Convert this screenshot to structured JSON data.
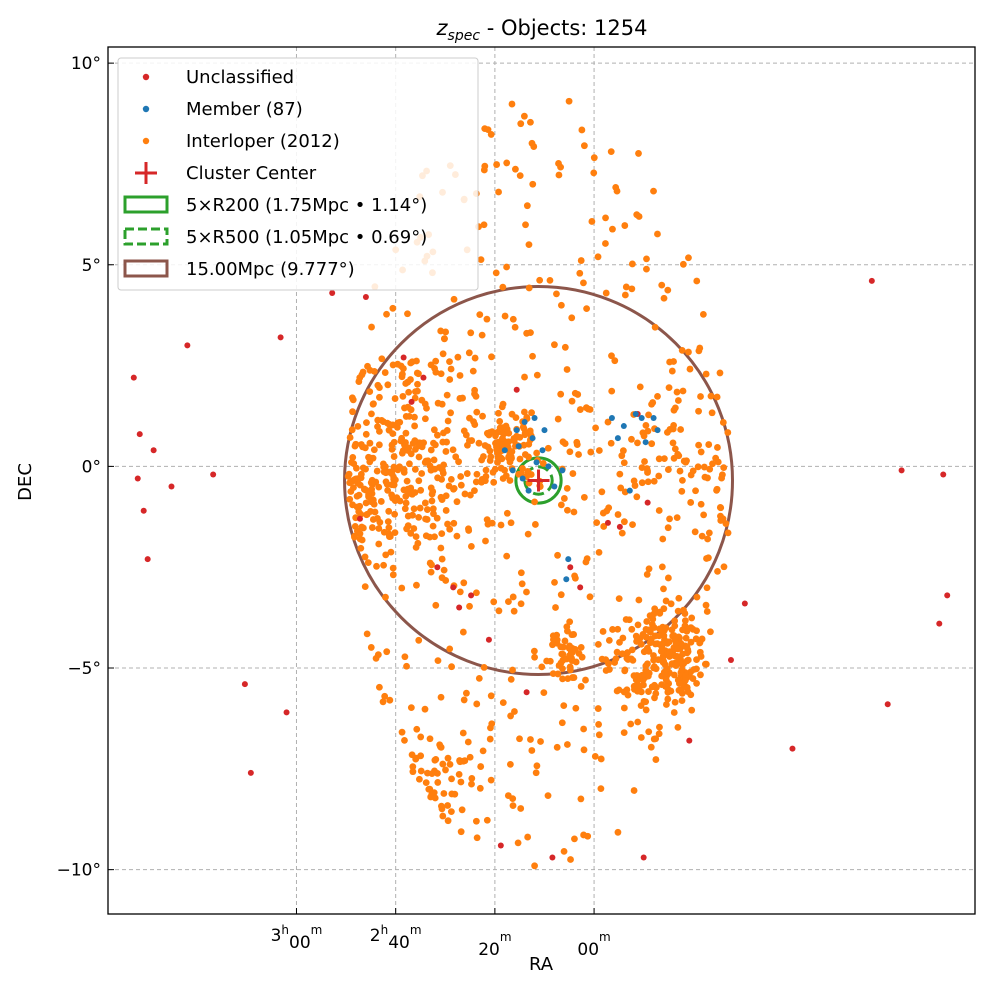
{
  "chart_data": {
    "type": "scatter",
    "title_main": "z",
    "title_sub": "spec",
    "title_rest": " - Objects: 1254",
    "xlabel": "RA",
    "ylabel": "DEC",
    "xlim": [
      54.5,
      10.8
    ],
    "ylim": [
      -11.1,
      10.4
    ],
    "grid": true,
    "legend_position": "top-left",
    "x_ticks": [
      {
        "value": 45,
        "label": "3",
        "unit_h": "h",
        "rest": "00",
        "unit_m": "m"
      },
      {
        "value": 40,
        "label": "2",
        "unit_h": "h",
        "rest": "40",
        "unit_m": "m"
      },
      {
        "value": 35,
        "label": "",
        "unit_h": "",
        "rest": "20",
        "unit_m": "m"
      },
      {
        "value": 30,
        "label": "",
        "unit_h": "",
        "rest": "00",
        "unit_m": "m"
      }
    ],
    "y_ticks": [
      {
        "value": 10,
        "label": "10°"
      },
      {
        "value": 5,
        "label": "5°"
      },
      {
        "value": 0,
        "label": "0°"
      },
      {
        "value": -5,
        "label": "−5°"
      },
      {
        "value": -10,
        "label": "−10°"
      }
    ],
    "cluster_center": {
      "ra": 32.8,
      "dec": -0.35
    },
    "circles": [
      {
        "name": "r200",
        "ra": 32.8,
        "dec": -0.35,
        "radius_deg": 1.14,
        "color": "#2ca02c",
        "dashed": false
      },
      {
        "name": "r500",
        "ra": 32.8,
        "dec": -0.35,
        "radius_deg": 0.69,
        "color": "#2ca02c",
        "dashed": true
      },
      {
        "name": "r15",
        "ra": 32.8,
        "dec": -0.35,
        "radius_deg": 9.777,
        "color": "#8c564b",
        "dashed": false
      }
    ],
    "legend": [
      {
        "label": "Unclassified",
        "kind": "dot",
        "color": "#d62728"
      },
      {
        "label": "Member (87)",
        "kind": "dot",
        "color": "#1f77b4"
      },
      {
        "label": "Interloper (2012)",
        "kind": "dot",
        "color": "#ff7f0e"
      },
      {
        "label": "Cluster Center",
        "kind": "plus",
        "color": "#d62728"
      },
      {
        "label": "5×R200 (1.75Mpc • 1.14°)",
        "kind": "rect",
        "color": "#2ca02c"
      },
      {
        "label": "5×R500 (1.05Mpc • 0.69°)",
        "kind": "rect-dashed",
        "color": "#2ca02c"
      },
      {
        "label": "15.00Mpc (9.777°)",
        "kind": "rect",
        "color": "#8c564b"
      }
    ],
    "unclassified": [
      [
        53.2,
        2.2
      ],
      [
        52.9,
        0.8
      ],
      [
        52.7,
        -1.1
      ],
      [
        53.0,
        -0.3
      ],
      [
        52.5,
        -2.3
      ],
      [
        50.5,
        3.0
      ],
      [
        49.2,
        -0.2
      ],
      [
        47.6,
        -5.4
      ],
      [
        47.3,
        -7.6
      ],
      [
        45.8,
        3.2
      ],
      [
        43.2,
        4.3
      ],
      [
        41.5,
        4.2
      ],
      [
        39.2,
        1.6
      ],
      [
        38.6,
        2.2
      ],
      [
        37.9,
        -2.5
      ],
      [
        37.1,
        -3.0
      ],
      [
        36.2,
        -3.2
      ],
      [
        35.3,
        -4.3
      ],
      [
        34.7,
        -9.4
      ],
      [
        33.4,
        -5.6
      ],
      [
        32.1,
        -9.7
      ],
      [
        30.7,
        -3.0
      ],
      [
        29.3,
        -1.4
      ],
      [
        28.7,
        -1.5
      ],
      [
        27.3,
        -0.9
      ],
      [
        27.5,
        -9.7
      ],
      [
        23.1,
        -4.8
      ],
      [
        20.0,
        -7.0
      ],
      [
        22.4,
        -3.4
      ],
      [
        16.0,
        4.6
      ],
      [
        14.5,
        -0.1
      ],
      [
        12.4,
        -0.2
      ],
      [
        12.6,
        -3.9
      ],
      [
        12.2,
        -3.2
      ],
      [
        15.2,
        -5.9
      ],
      [
        39.6,
        2.7
      ],
      [
        36.8,
        -3.5
      ],
      [
        25.2,
        -6.8
      ],
      [
        45.5,
        -6.1
      ],
      [
        51.3,
        -0.5
      ],
      [
        52.2,
        0.4
      ],
      [
        31.2,
        -2.5
      ],
      [
        41.8,
        -1.3
      ],
      [
        33.9,
        1.9
      ],
      [
        27.8,
        1.3
      ]
    ],
    "members": [
      [
        33.9,
        0.9
      ],
      [
        33.5,
        1.1
      ],
      [
        33.1,
        0.7
      ],
      [
        32.6,
        0.4
      ],
      [
        32.3,
        0.0
      ],
      [
        32.0,
        -0.5
      ],
      [
        31.6,
        -0.1
      ],
      [
        31.3,
        -2.3
      ],
      [
        31.4,
        -2.8
      ],
      [
        33.6,
        -0.3
      ],
      [
        34.1,
        -0.1
      ],
      [
        33.3,
        -0.6
      ],
      [
        32.9,
        0.1
      ],
      [
        29.1,
        1.2
      ],
      [
        28.8,
        0.7
      ],
      [
        28.5,
        1.0
      ],
      [
        28.2,
        -0.6
      ],
      [
        27.9,
        1.3
      ],
      [
        27.6,
        1.2
      ],
      [
        27.4,
        0.6
      ],
      [
        27.0,
        1.2
      ],
      [
        26.8,
        0.9
      ],
      [
        34.5,
        0.4
      ],
      [
        33.8,
        0.5
      ],
      [
        32.5,
        0.9
      ],
      [
        33.0,
        1.2
      ]
    ]
  }
}
